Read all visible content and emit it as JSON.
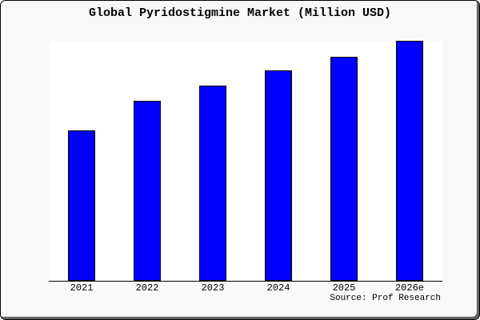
{
  "chart_data": {
    "type": "bar",
    "title": "Global Pyridostigmine Market (Million USD)",
    "categories": [
      "2021",
      "2022",
      "2023",
      "2024",
      "2025",
      "2026e"
    ],
    "values": [
      62.7,
      75.0,
      81.3,
      87.7,
      93.3,
      100.0
    ],
    "ylim": [
      0,
      100
    ],
    "xlabel": "",
    "ylabel": "",
    "y_axis_visible": false,
    "grid": false,
    "legend": false,
    "note": "No y-axis tick labels shown; values are relative heights with tallest bar (2026e) = 100",
    "source_note": "Source: Prof Research"
  },
  "colors": {
    "bar_fill": "#0000ff",
    "bar_border": "#000000",
    "figure_bg": "#f9f9f9",
    "plot_bg": "#ffffff",
    "axis": "#000000",
    "text": "#000000",
    "border": "#000000"
  }
}
